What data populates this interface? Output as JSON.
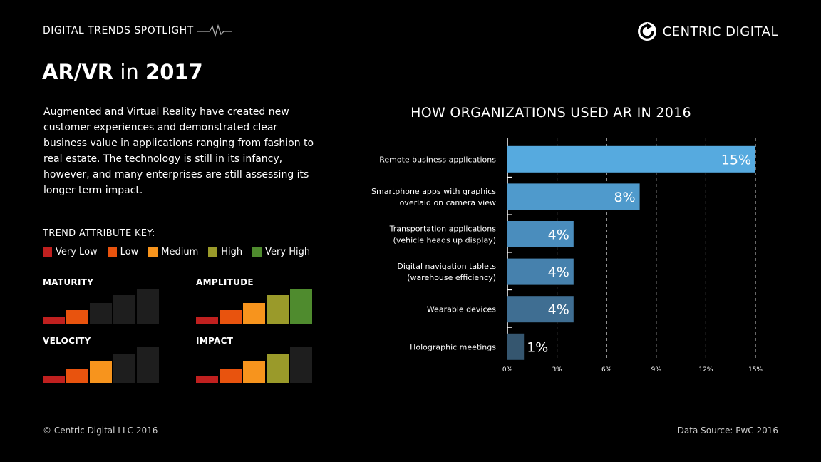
{
  "header": {
    "label": "DIGITAL TRENDS SPOTLIGHT",
    "brand": "CENTRIC DIGITAL"
  },
  "title": {
    "main": "AR/VR",
    "connector": " in ",
    "year": "2017"
  },
  "intro": "Augmented and Virtual Reality have created new customer experiences and demonstrated clear business value in applications ranging from fashion to real estate. The technology is still in its infancy, however, and many enterprises are still assessing its longer term impact.",
  "key": {
    "title": "TREND ATTRIBUTE KEY:",
    "levels": [
      {
        "label": "Very Low",
        "color": "#c0201f"
      },
      {
        "label": "Low",
        "color": "#e8530e"
      },
      {
        "label": "Medium",
        "color": "#f7941d"
      },
      {
        "label": "High",
        "color": "#9a9a2a"
      },
      {
        "label": "Very High",
        "color": "#4f8b2e"
      }
    ],
    "inactive_color": "#1e1e1e"
  },
  "attributes": [
    {
      "name": "MATURITY",
      "level": 2
    },
    {
      "name": "AMPLITUDE",
      "level": 5
    },
    {
      "name": "VELOCITY",
      "level": 3
    },
    {
      "name": "IMPACT",
      "level": 4
    }
  ],
  "chart_data": {
    "type": "bar",
    "orientation": "horizontal",
    "title": "HOW ORGANIZATIONS USED AR IN 2016",
    "categories": [
      [
        "Remote business applications"
      ],
      [
        "Smartphone apps with graphics",
        "overlaid on camera view"
      ],
      [
        "Transportation applications",
        "(vehicle heads up display)"
      ],
      [
        "Digital navigation tablets",
        "(warehouse efficiency)"
      ],
      [
        "Wearable devices"
      ],
      [
        "Holographic meetings"
      ]
    ],
    "values": [
      15,
      8,
      4,
      4,
      4,
      1
    ],
    "value_labels": [
      "15%",
      "8%",
      "4%",
      "4%",
      "4%",
      "1%"
    ],
    "colors": [
      "#56aadf",
      "#4f9acc",
      "#4a8dbd",
      "#4681ad",
      "#3f6e92",
      "#35566f"
    ],
    "xticks": [
      "0%",
      "3%",
      "6%",
      "9%",
      "12%",
      "15%"
    ],
    "xlim": [
      0,
      15
    ],
    "grid": true
  },
  "footer": {
    "copyright": "© Centric Digital LLC 2016",
    "source": "Data Source: PwC 2016"
  }
}
